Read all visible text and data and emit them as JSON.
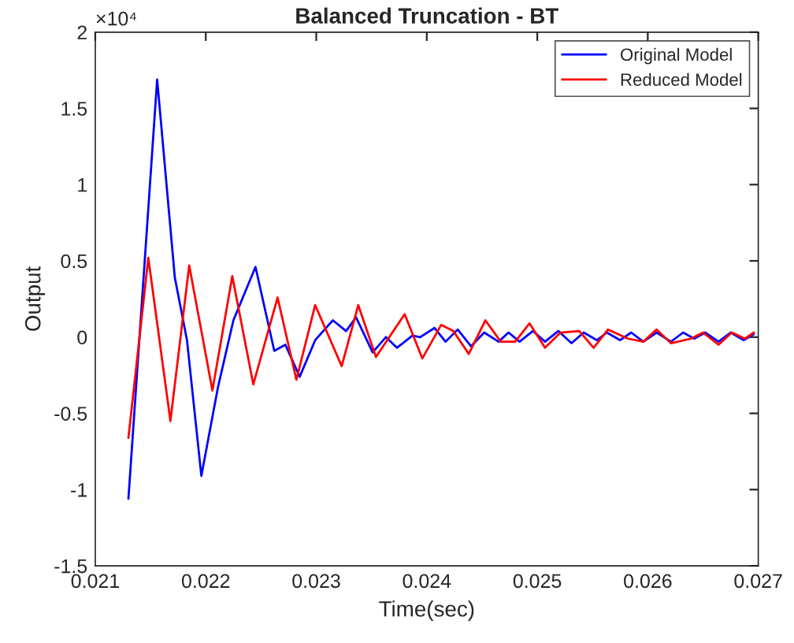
{
  "chart_data": {
    "type": "line",
    "title": "Balanced Truncation - BT",
    "xlabel": "Time(sec)",
    "ylabel": "Output",
    "annotations": [
      "×10⁴"
    ],
    "xlim": [
      0.021,
      0.027
    ],
    "xticks": [
      0.021,
      0.022,
      0.023,
      0.024,
      0.025,
      0.026,
      0.027
    ],
    "ylim": [
      -1.5,
      2
    ],
    "yticks": [
      -1.5,
      -1,
      -0.5,
      0,
      0.5,
      1,
      1.5,
      2
    ],
    "grid": false,
    "legend": "top right",
    "marker": "none",
    "line_style": "solid",
    "series": [
      {
        "name": "Original Model",
        "color": "#0000ff",
        "x": [
          0.0213,
          0.02156,
          0.02172,
          0.02183,
          0.02196,
          0.02211,
          0.02225,
          0.02245,
          0.02262,
          0.02272,
          0.02285,
          0.02299,
          0.02315,
          0.02327,
          0.02336,
          0.02351,
          0.02363,
          0.02373,
          0.02387,
          0.02394,
          0.02407,
          0.02417,
          0.02428,
          0.0244,
          0.02452,
          0.02465,
          0.02474,
          0.02484,
          0.02496,
          0.02507,
          0.02519,
          0.02531,
          0.02542,
          0.02554,
          0.02563,
          0.02575,
          0.02585,
          0.02596,
          0.02608,
          0.02621,
          0.02632,
          0.02642,
          0.02652,
          0.02664,
          0.02675,
          0.02687,
          0.02696
        ],
        "values": [
          -1.06,
          1.69,
          0.39,
          -0.02,
          -0.91,
          -0.33,
          0.11,
          0.46,
          -0.09,
          -0.05,
          -0.26,
          -0.02,
          0.11,
          0.04,
          0.13,
          -0.1,
          0,
          -0.07,
          0.01,
          0,
          0.06,
          -0.03,
          0.05,
          -0.06,
          0.03,
          -0.03,
          0.03,
          -0.03,
          0.04,
          -0.03,
          0.04,
          -0.04,
          0.03,
          -0.02,
          0.03,
          -0.02,
          0.03,
          -0.03,
          0.03,
          -0.03,
          0.03,
          -0.01,
          0.03,
          -0.03,
          0.03,
          -0.02,
          0.02
        ]
      },
      {
        "name": "Reduced Model",
        "color": "#ff0000",
        "x": [
          0.0213,
          0.02148,
          0.02168,
          0.02185,
          0.02206,
          0.02224,
          0.02243,
          0.02265,
          0.02282,
          0.02299,
          0.02323,
          0.02338,
          0.02354,
          0.0238,
          0.02396,
          0.02413,
          0.02424,
          0.02438,
          0.02453,
          0.02467,
          0.0248,
          0.02493,
          0.02507,
          0.02521,
          0.02538,
          0.02551,
          0.02564,
          0.02582,
          0.02596,
          0.02608,
          0.02621,
          0.02639,
          0.0265,
          0.02664,
          0.02676,
          0.02688,
          0.02696
        ],
        "values": [
          -0.66,
          0.52,
          -0.55,
          0.47,
          -0.35,
          0.4,
          -0.31,
          0.26,
          -0.28,
          0.21,
          -0.19,
          0.21,
          -0.13,
          0.15,
          -0.14,
          0.08,
          0.04,
          -0.11,
          0.11,
          -0.03,
          -0.03,
          0.09,
          -0.07,
          0.03,
          0.04,
          -0.07,
          0.05,
          -0.01,
          -0.03,
          0.05,
          -0.04,
          -0.01,
          0.03,
          -0.05,
          0.03,
          -0.01,
          0.03
        ]
      }
    ]
  }
}
